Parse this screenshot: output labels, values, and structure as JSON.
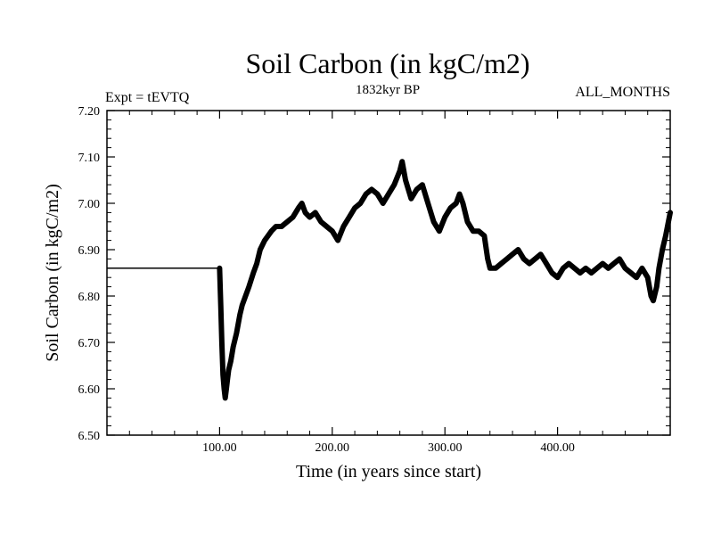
{
  "chart_data": {
    "type": "line",
    "title": "Soil Carbon (in kgC/m2)",
    "subtitle": "1832kyr BP",
    "left_label": "Expt = tEVTQ",
    "right_label": "ALL_MONTHS",
    "xlabel": "Time (in years since start)",
    "ylabel": "Soil Carbon (in kgC/m2)",
    "xlim": [
      0,
      500
    ],
    "ylim": [
      6.5,
      7.2
    ],
    "x_ticks": [
      {
        "value": 100,
        "label": "100.00"
      },
      {
        "value": 200,
        "label": "200.00"
      },
      {
        "value": 300,
        "label": "300.00"
      },
      {
        "value": 400,
        "label": "400.00"
      }
    ],
    "y_ticks": [
      {
        "value": 6.5,
        "label": "6.50"
      },
      {
        "value": 6.6,
        "label": "6.60"
      },
      {
        "value": 6.7,
        "label": "6.70"
      },
      {
        "value": 6.8,
        "label": "6.80"
      },
      {
        "value": 6.9,
        "label": "6.90"
      },
      {
        "value": 7.0,
        "label": "7.00"
      },
      {
        "value": 7.1,
        "label": "7.10"
      },
      {
        "value": 7.2,
        "label": "7.20"
      }
    ],
    "grid": false,
    "series": [
      {
        "name": "soil_carbon",
        "color": "#000000",
        "x": [
          0,
          99,
          100,
          101,
          102,
          103,
          104,
          105,
          106,
          107,
          108,
          110,
          112,
          115,
          118,
          120,
          123,
          126,
          130,
          133,
          136,
          140,
          143,
          146,
          150,
          155,
          160,
          165,
          170,
          173,
          176,
          180,
          185,
          190,
          195,
          200,
          205,
          210,
          215,
          220,
          225,
          230,
          235,
          240,
          245,
          250,
          255,
          260,
          262,
          265,
          270,
          275,
          280,
          285,
          290,
          295,
          300,
          305,
          310,
          313,
          316,
          320,
          325,
          330,
          335,
          338,
          340,
          345,
          350,
          355,
          360,
          365,
          370,
          375,
          380,
          385,
          390,
          395,
          400,
          405,
          410,
          415,
          420,
          425,
          430,
          435,
          440,
          445,
          450,
          455,
          460,
          465,
          470,
          475,
          480,
          483,
          485,
          488,
          490,
          493,
          496,
          500
        ],
        "y": [
          6.86,
          6.86,
          6.86,
          6.78,
          6.7,
          6.63,
          6.6,
          6.58,
          6.6,
          6.62,
          6.64,
          6.66,
          6.69,
          6.72,
          6.76,
          6.78,
          6.8,
          6.82,
          6.85,
          6.87,
          6.9,
          6.92,
          6.93,
          6.94,
          6.95,
          6.95,
          6.96,
          6.97,
          6.99,
          7.0,
          6.98,
          6.97,
          6.98,
          6.96,
          6.95,
          6.94,
          6.92,
          6.95,
          6.97,
          6.99,
          7.0,
          7.02,
          7.03,
          7.02,
          7.0,
          7.02,
          7.04,
          7.07,
          7.09,
          7.05,
          7.01,
          7.03,
          7.04,
          7.0,
          6.96,
          6.94,
          6.97,
          6.99,
          7.0,
          7.02,
          7.0,
          6.96,
          6.94,
          6.94,
          6.93,
          6.88,
          6.86,
          6.86,
          6.87,
          6.88,
          6.89,
          6.9,
          6.88,
          6.87,
          6.88,
          6.89,
          6.87,
          6.85,
          6.84,
          6.86,
          6.87,
          6.86,
          6.85,
          6.86,
          6.85,
          6.86,
          6.87,
          6.86,
          6.87,
          6.88,
          6.86,
          6.85,
          6.84,
          6.86,
          6.84,
          6.8,
          6.79,
          6.82,
          6.86,
          6.9,
          6.93,
          6.98
        ]
      }
    ]
  }
}
